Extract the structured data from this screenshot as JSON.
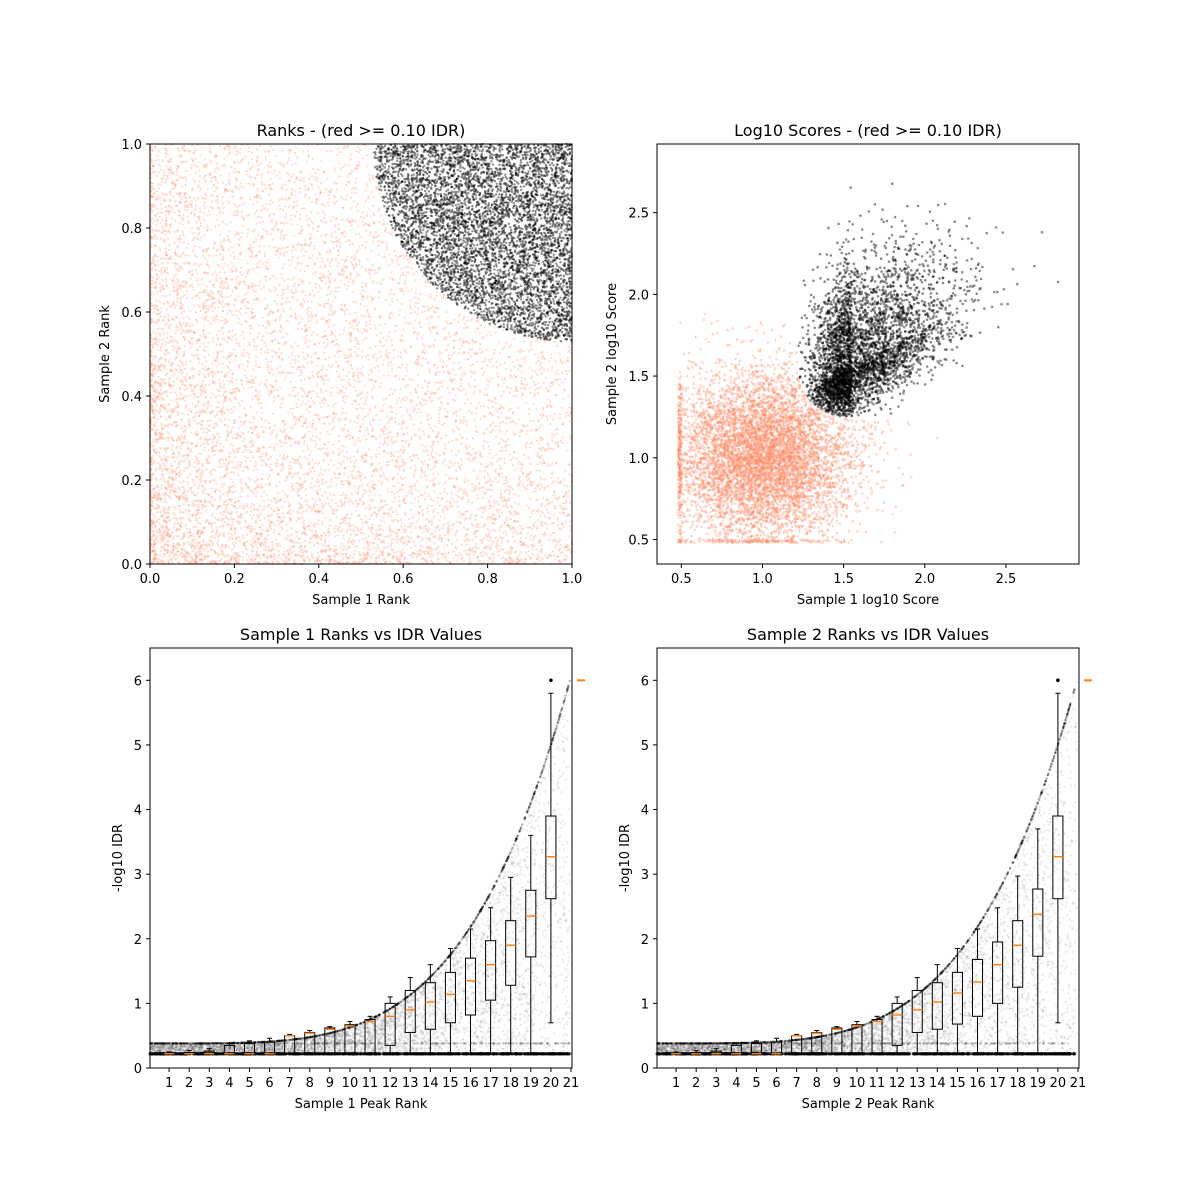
{
  "chart_data": [
    {
      "type": "scatter",
      "title": "Ranks - (red >= 0.10 IDR)",
      "xlabel": "Sample 1 Rank",
      "ylabel": "Sample 2 Rank",
      "xlim": [
        0,
        1
      ],
      "ylim": [
        0,
        1
      ],
      "xticks": [
        "0.0",
        "0.2",
        "0.4",
        "0.6",
        "0.8",
        "1.0"
      ],
      "yticks": [
        "0.0",
        "0.2",
        "0.4",
        "0.6",
        "0.8",
        "1.0"
      ],
      "grid": false,
      "series": [
        {
          "color": "#ff8a65",
          "description_region": "whole square except upper-right",
          "approx_points": 9000
        },
        {
          "color": "#000000",
          "description_region": "upper-right quarter disc centered near (1,1), radius ~0.47",
          "approx_points": 6000
        }
      ]
    },
    {
      "type": "scatter",
      "title": "Log10 Scores - (red >= 0.10 IDR)",
      "xlabel": "Sample 1 log10 Score",
      "ylabel": "Sample 2 log10 Score",
      "xlim": [
        0.35,
        2.95
      ],
      "ylim": [
        0.35,
        2.92
      ],
      "xticks": [
        "0.5",
        "1.0",
        "1.5",
        "2.0",
        "2.5"
      ],
      "yticks": [
        "0.5",
        "1.0",
        "1.5",
        "2.0",
        "2.5"
      ],
      "grid": false,
      "series": [
        {
          "color": "#ff8a65",
          "center": [
            1.0,
            1.0
          ],
          "min": [
            0.48,
            0.48
          ]
        },
        {
          "color": "#000000",
          "center": [
            1.6,
            1.65
          ],
          "min": [
            1.22,
            1.25
          ]
        }
      ]
    },
    {
      "type": "box",
      "title": "Sample 1 Ranks vs IDR Values",
      "xlabel": "Sample 1 Peak Rank",
      "ylabel": "-log10 IDR",
      "ylim": [
        0,
        6.5
      ],
      "xticks": [
        "1",
        "2",
        "3",
        "4",
        "5",
        "6",
        "7",
        "8",
        "9",
        "10",
        "11",
        "12",
        "13",
        "14",
        "15",
        "16",
        "17",
        "18",
        "19",
        "20",
        "21"
      ],
      "yticks": [
        "0",
        "1",
        "2",
        "3",
        "4",
        "5",
        "6"
      ],
      "boxes": [
        {
          "pos": 1,
          "q1": 0.22,
          "median": 0.22,
          "q3": 0.23,
          "wlo": 0.22,
          "whi": 0.25
        },
        {
          "pos": 2,
          "q1": 0.22,
          "median": 0.22,
          "q3": 0.24,
          "wlo": 0.22,
          "whi": 0.27
        },
        {
          "pos": 3,
          "q1": 0.22,
          "median": 0.22,
          "q3": 0.26,
          "wlo": 0.22,
          "whi": 0.3
        },
        {
          "pos": 4,
          "q1": 0.22,
          "median": 0.22,
          "q3": 0.35,
          "wlo": 0.22,
          "whi": 0.38
        },
        {
          "pos": 5,
          "q1": 0.22,
          "median": 0.22,
          "q3": 0.38,
          "wlo": 0.22,
          "whi": 0.42
        },
        {
          "pos": 6,
          "q1": 0.22,
          "median": 0.22,
          "q3": 0.4,
          "wlo": 0.22,
          "whi": 0.46
        },
        {
          "pos": 7,
          "q1": 0.22,
          "median": 0.5,
          "q3": 0.5,
          "wlo": 0.22,
          "whi": 0.52
        },
        {
          "pos": 8,
          "q1": 0.22,
          "median": 0.54,
          "q3": 0.55,
          "wlo": 0.22,
          "whi": 0.58
        },
        {
          "pos": 9,
          "q1": 0.22,
          "median": 0.6,
          "q3": 0.62,
          "wlo": 0.22,
          "whi": 0.64
        },
        {
          "pos": 10,
          "q1": 0.22,
          "median": 0.65,
          "q3": 0.67,
          "wlo": 0.22,
          "whi": 0.72
        },
        {
          "pos": 11,
          "q1": 0.22,
          "median": 0.72,
          "q3": 0.75,
          "wlo": 0.22,
          "whi": 0.8
        },
        {
          "pos": 12,
          "q1": 0.35,
          "median": 0.8,
          "q3": 1.0,
          "wlo": 0.22,
          "whi": 1.1
        },
        {
          "pos": 13,
          "q1": 0.55,
          "median": 0.9,
          "q3": 1.2,
          "wlo": 0.22,
          "whi": 1.4
        },
        {
          "pos": 14,
          "q1": 0.6,
          "median": 1.02,
          "q3": 1.32,
          "wlo": 0.22,
          "whi": 1.6
        },
        {
          "pos": 15,
          "q1": 0.7,
          "median": 1.14,
          "q3": 1.48,
          "wlo": 0.22,
          "whi": 1.85
        },
        {
          "pos": 16,
          "q1": 0.82,
          "median": 1.35,
          "q3": 1.7,
          "wlo": 0.22,
          "whi": 2.15
        },
        {
          "pos": 17,
          "q1": 1.05,
          "median": 1.6,
          "q3": 1.97,
          "wlo": 0.22,
          "whi": 2.48
        },
        {
          "pos": 18,
          "q1": 1.28,
          "median": 1.9,
          "q3": 2.28,
          "wlo": 0.22,
          "whi": 2.95
        },
        {
          "pos": 19,
          "q1": 1.72,
          "median": 2.35,
          "q3": 2.75,
          "wlo": 0.22,
          "whi": 3.6
        },
        {
          "pos": 20,
          "q1": 2.62,
          "median": 3.27,
          "q3": 3.9,
          "wlo": 0.7,
          "whi": 5.8
        }
      ],
      "outliers": [
        {
          "x": 20,
          "y": 6.0
        }
      ],
      "extra_point": {
        "x": 21.5,
        "y": 6.0
      },
      "median_color": "#ff7f0e"
    },
    {
      "type": "box",
      "title": "Sample 2 Ranks vs IDR Values",
      "xlabel": "Sample 2 Peak Rank",
      "ylabel": "-log10 IDR",
      "ylim": [
        0,
        6.5
      ],
      "xticks": [
        "1",
        "2",
        "3",
        "4",
        "5",
        "6",
        "7",
        "8",
        "9",
        "10",
        "11",
        "12",
        "13",
        "14",
        "15",
        "16",
        "17",
        "18",
        "19",
        "20",
        "21"
      ],
      "yticks": [
        "0",
        "1",
        "2",
        "3",
        "4",
        "5",
        "6"
      ],
      "boxes": [
        {
          "pos": 1,
          "q1": 0.22,
          "median": 0.22,
          "q3": 0.23,
          "wlo": 0.22,
          "whi": 0.25
        },
        {
          "pos": 2,
          "q1": 0.22,
          "median": 0.22,
          "q3": 0.24,
          "wlo": 0.22,
          "whi": 0.27
        },
        {
          "pos": 3,
          "q1": 0.22,
          "median": 0.22,
          "q3": 0.26,
          "wlo": 0.22,
          "whi": 0.3
        },
        {
          "pos": 4,
          "q1": 0.22,
          "median": 0.22,
          "q3": 0.35,
          "wlo": 0.22,
          "whi": 0.38
        },
        {
          "pos": 5,
          "q1": 0.22,
          "median": 0.22,
          "q3": 0.38,
          "wlo": 0.22,
          "whi": 0.42
        },
        {
          "pos": 6,
          "q1": 0.22,
          "median": 0.22,
          "q3": 0.4,
          "wlo": 0.22,
          "whi": 0.46
        },
        {
          "pos": 7,
          "q1": 0.22,
          "median": 0.5,
          "q3": 0.5,
          "wlo": 0.22,
          "whi": 0.52
        },
        {
          "pos": 8,
          "q1": 0.22,
          "median": 0.54,
          "q3": 0.55,
          "wlo": 0.22,
          "whi": 0.58
        },
        {
          "pos": 9,
          "q1": 0.22,
          "median": 0.6,
          "q3": 0.62,
          "wlo": 0.22,
          "whi": 0.64
        },
        {
          "pos": 10,
          "q1": 0.22,
          "median": 0.65,
          "q3": 0.67,
          "wlo": 0.22,
          "whi": 0.72
        },
        {
          "pos": 11,
          "q1": 0.22,
          "median": 0.72,
          "q3": 0.75,
          "wlo": 0.22,
          "whi": 0.8
        },
        {
          "pos": 12,
          "q1": 0.35,
          "median": 0.82,
          "q3": 1.0,
          "wlo": 0.22,
          "whi": 1.1
        },
        {
          "pos": 13,
          "q1": 0.55,
          "median": 0.9,
          "q3": 1.2,
          "wlo": 0.22,
          "whi": 1.4
        },
        {
          "pos": 14,
          "q1": 0.6,
          "median": 1.02,
          "q3": 1.32,
          "wlo": 0.22,
          "whi": 1.6
        },
        {
          "pos": 15,
          "q1": 0.68,
          "median": 1.16,
          "q3": 1.48,
          "wlo": 0.22,
          "whi": 1.85
        },
        {
          "pos": 16,
          "q1": 0.8,
          "median": 1.33,
          "q3": 1.68,
          "wlo": 0.22,
          "whi": 2.15
        },
        {
          "pos": 17,
          "q1": 1.0,
          "median": 1.6,
          "q3": 1.95,
          "wlo": 0.22,
          "whi": 2.48
        },
        {
          "pos": 18,
          "q1": 1.25,
          "median": 1.9,
          "q3": 2.28,
          "wlo": 0.22,
          "whi": 2.97
        },
        {
          "pos": 19,
          "q1": 1.73,
          "median": 2.38,
          "q3": 2.77,
          "wlo": 0.22,
          "whi": 3.7
        },
        {
          "pos": 20,
          "q1": 2.62,
          "median": 3.27,
          "q3": 3.9,
          "wlo": 0.7,
          "whi": 5.8
        }
      ],
      "outliers": [
        {
          "x": 20,
          "y": 6.0
        }
      ],
      "extra_point": {
        "x": 21.5,
        "y": 6.0
      },
      "median_color": "#ff7f0e"
    }
  ]
}
